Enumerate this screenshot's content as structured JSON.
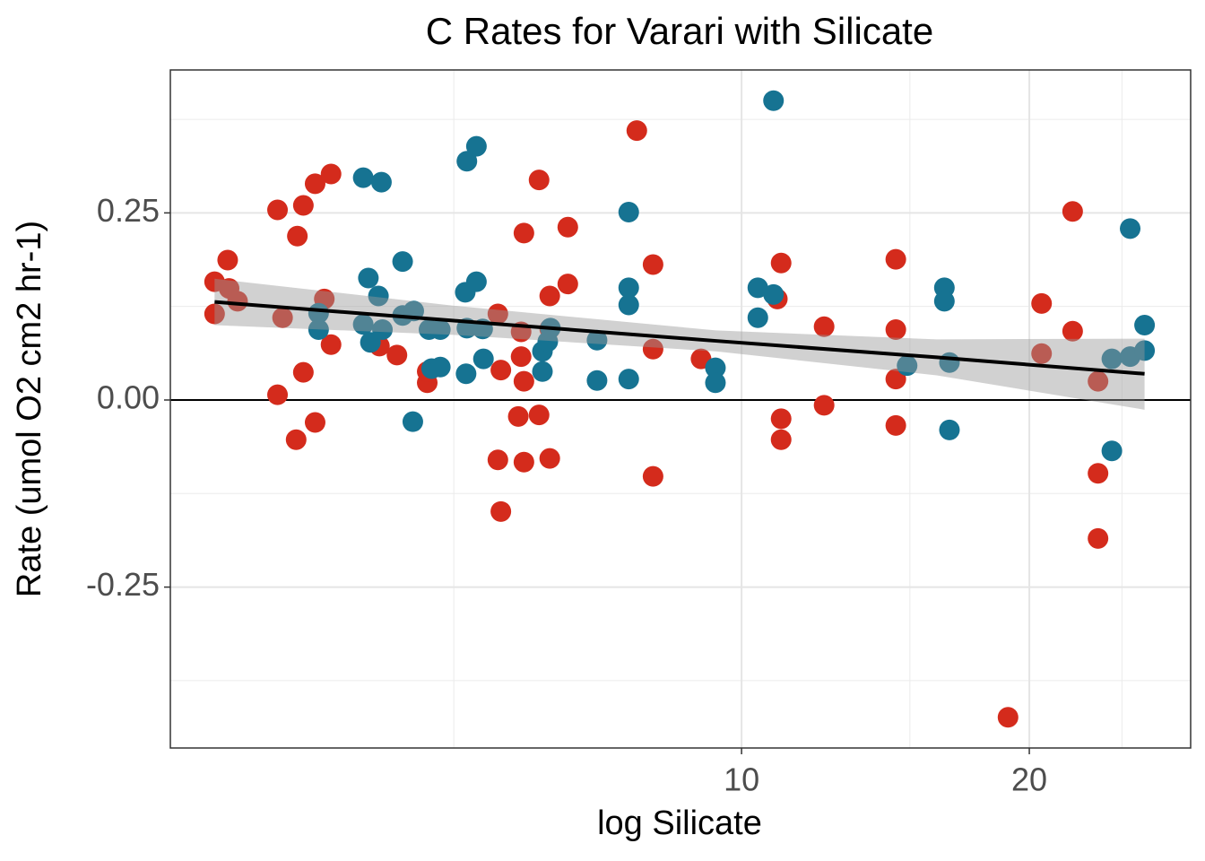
{
  "chart_data": {
    "type": "scatter",
    "title": "C Rates for Varari with Silicate",
    "x_label": "log Silicate",
    "y_label": "Rate (umol O2 cm2 hr-1)",
    "x_log": true,
    "xlim": [
      2.526,
      29.5
    ],
    "xticks": [
      10,
      20
    ],
    "x_minor_ticks": [
      5,
      15,
      25
    ],
    "ylim": [
      -0.465,
      0.441
    ],
    "yticks": [
      -0.25,
      {
        "value": 0,
        "label": "0.00"
      },
      0.25
    ],
    "y_minor_ticks": [
      -0.375,
      -0.125,
      0.125,
      0.375
    ],
    "grid": true,
    "hline": 0,
    "series": [
      {
        "color": "#d42b1c",
        "x": [
          2.81,
          2.9,
          2.81,
          2.91,
          2.97,
          3.27,
          3.31,
          3.27,
          3.43,
          3.48,
          3.58,
          3.72,
          3.66,
          3.48,
          3.42,
          3.58,
          3.72,
          4.18,
          4.36,
          4.69,
          4.69,
          5.56,
          5.56,
          5.6,
          5.6,
          5.92,
          5.88,
          5.88,
          5.92,
          5.84,
          5.92,
          6.14,
          6.14,
          6.3,
          6.3,
          6.3,
          6.58,
          6.58,
          7.77,
          8.08,
          8.08,
          8.08,
          9.07,
          10.9,
          11.0,
          11.0,
          11.0,
          12.2,
          12.2,
          14.5,
          14.5,
          14.5,
          14.5,
          19.0,
          20.6,
          20.6,
          22.2,
          22.2,
          23.6,
          23.6,
          23.6
        ],
        "values": [
          0.158,
          0.187,
          0.115,
          0.149,
          0.132,
          0.254,
          0.11,
          0.007,
          0.219,
          0.26,
          0.289,
          0.302,
          0.135,
          0.037,
          -0.053,
          -0.03,
          0.074,
          0.072,
          0.06,
          0.023,
          0.038,
          0.115,
          -0.08,
          0.04,
          -0.149,
          0.223,
          0.091,
          0.058,
          0.025,
          -0.022,
          -0.083,
          0.294,
          -0.02,
          0.139,
          -0.078,
          0.095,
          0.231,
          0.155,
          0.36,
          0.181,
          0.068,
          -0.102,
          0.055,
          0.135,
          0.183,
          -0.025,
          -0.053,
          0.098,
          -0.007,
          0.188,
          0.094,
          0.028,
          -0.034,
          -0.424,
          0.129,
          0.062,
          0.252,
          0.092,
          0.025,
          -0.098,
          -0.185
        ]
      },
      {
        "color": "#167392",
        "x": [
          3.61,
          3.61,
          4.02,
          4.2,
          4.07,
          4.17,
          4.02,
          4.09,
          4.21,
          4.42,
          4.42,
          4.54,
          4.53,
          4.71,
          4.84,
          4.74,
          4.84,
          5.16,
          5.28,
          5.14,
          5.28,
          5.16,
          5.36,
          5.37,
          5.15,
          6.19,
          6.19,
          6.27,
          6.31,
          7.06,
          7.06,
          7.62,
          7.62,
          7.62,
          7.62,
          9.39,
          9.39,
          10.4,
          10.4,
          10.8,
          10.8,
          14.9,
          16.3,
          16.3,
          16.5,
          16.5,
          24.4,
          25.5,
          24.4,
          25.5,
          26.4,
          26.4
        ],
        "values": [
          0.116,
          0.094,
          0.297,
          0.291,
          0.163,
          0.139,
          0.101,
          0.077,
          0.094,
          0.185,
          0.113,
          0.119,
          -0.029,
          0.094,
          0.094,
          0.042,
          0.044,
          0.319,
          0.339,
          0.144,
          0.158,
          0.096,
          0.095,
          0.055,
          0.035,
          0.038,
          0.065,
          0.078,
          0.096,
          0.08,
          0.026,
          0.251,
          0.15,
          0.127,
          0.028,
          0.043,
          0.023,
          0.15,
          0.11,
          0.4,
          0.141,
          0.046,
          0.15,
          0.132,
          0.05,
          -0.04,
          0.055,
          0.058,
          -0.068,
          0.229,
          0.1,
          0.066
        ]
      }
    ],
    "fit": {
      "color": "#000000",
      "band_color": "#999999",
      "x": [
        2.81,
        5,
        9.4,
        16,
        26.4
      ],
      "values": [
        0.131,
        0.106,
        0.079,
        0.057,
        0.035
      ],
      "upper": [
        0.162,
        0.126,
        0.093,
        0.081,
        0.082
      ],
      "lower": [
        0.1,
        0.087,
        0.065,
        0.033,
        -0.013
      ]
    }
  }
}
